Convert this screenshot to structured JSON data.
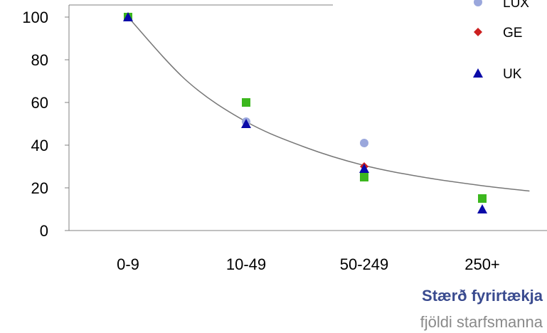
{
  "chart_data": {
    "type": "scatter",
    "categories": [
      "0-9",
      "10-49",
      "50-249",
      "250+"
    ],
    "ylim": [
      0,
      100
    ],
    "yticks": [
      0,
      20,
      40,
      60,
      80,
      100
    ],
    "xlabel": "Stærð fyrirtækja",
    "xlabel_sub": "fjöldi starfsmanna",
    "ylabel": "",
    "grid": false,
    "legend": {
      "placement": "top-right"
    },
    "series": [
      {
        "name": "",
        "marker": "square",
        "color": "#3cb71e",
        "values": [
          100,
          60,
          25,
          15
        ]
      },
      {
        "name": "LUX",
        "marker": "circle",
        "color": "#9aa7dc",
        "values": [
          100,
          51,
          41,
          null
        ]
      },
      {
        "name": "GE",
        "marker": "diamond",
        "color": "#cc1f1f",
        "values": [
          100,
          null,
          30,
          null
        ]
      },
      {
        "name": "UK",
        "marker": "triangle",
        "color": "#0a0aa8",
        "values": [
          100,
          50,
          29,
          10
        ]
      }
    ],
    "trendline": {
      "color": "#777777",
      "points": [
        [
          0,
          100
        ],
        [
          0.5,
          70
        ],
        [
          1,
          51
        ],
        [
          1.5,
          39
        ],
        [
          2,
          30.5
        ],
        [
          2.5,
          25
        ],
        [
          3,
          21
        ],
        [
          3.4,
          18.5
        ]
      ]
    }
  }
}
